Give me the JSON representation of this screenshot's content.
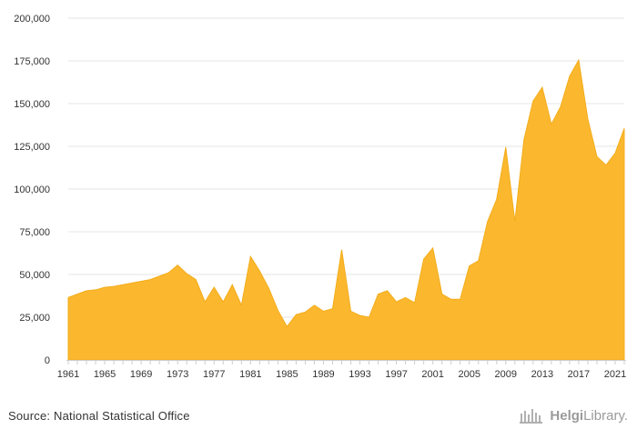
{
  "chart_data": {
    "type": "area",
    "title": "",
    "xlabel": "",
    "ylabel": "",
    "ylim": [
      0,
      200000
    ],
    "yticks": [
      0,
      25000,
      50000,
      75000,
      100000,
      125000,
      150000,
      175000,
      200000
    ],
    "ytick_labels": [
      "0",
      "25,000",
      "50,000",
      "75,000",
      "100,000",
      "125,000",
      "150,000",
      "175,000",
      "200,000"
    ],
    "xlim": [
      1961,
      2022
    ],
    "xticks": [
      1961,
      1965,
      1969,
      1973,
      1977,
      1981,
      1985,
      1989,
      1993,
      1997,
      2001,
      2005,
      2009,
      2013,
      2017,
      2021
    ],
    "xtick_labels": [
      "1961",
      "1965",
      "1969",
      "1973",
      "1977",
      "1981",
      "1985",
      "1989",
      "1993",
      "1997",
      "2001",
      "2005",
      "2009",
      "2013",
      "2017",
      "2021"
    ],
    "grid": true,
    "x": [
      1961,
      1962,
      1963,
      1964,
      1965,
      1966,
      1967,
      1968,
      1969,
      1970,
      1971,
      1972,
      1973,
      1974,
      1975,
      1976,
      1977,
      1978,
      1979,
      1980,
      1981,
      1982,
      1983,
      1984,
      1985,
      1986,
      1987,
      1988,
      1989,
      1990,
      1991,
      1992,
      1993,
      1994,
      1995,
      1996,
      1997,
      1998,
      1999,
      2000,
      2001,
      2002,
      2003,
      2004,
      2005,
      2006,
      2007,
      2008,
      2009,
      2010,
      2011,
      2012,
      2013,
      2014,
      2015,
      2016,
      2017,
      2018,
      2019,
      2020,
      2021,
      2022
    ],
    "series": [
      {
        "values": [
          36500,
          38500,
          40500,
          41000,
          42500,
          43000,
          44000,
          45000,
          46000,
          47000,
          49000,
          51000,
          55500,
          50500,
          47000,
          34000,
          42500,
          34000,
          44000,
          32000,
          60500,
          52000,
          42000,
          29000,
          19500,
          26500,
          28000,
          32000,
          28500,
          30000,
          64500,
          28500,
          26000,
          25000,
          38500,
          40500,
          34000,
          36500,
          33500,
          59000,
          65500,
          38500,
          35500,
          35500,
          55000,
          58000,
          81000,
          94000,
          124500,
          81000,
          129000,
          151500,
          159500,
          138000,
          148000,
          166000,
          175500,
          141000,
          119000,
          114000,
          121000,
          135500
        ]
      }
    ]
  },
  "colors": {
    "area_fill": "#FBB82F",
    "area_line": "#F3AC19",
    "grid": "#e6e6e6",
    "axis": "#cccccc"
  },
  "footer": {
    "source": "Source: National Statistical Office",
    "logo_icon": "helgi-library-icon",
    "logo_part1": "Helgi",
    "logo_part2": "Library."
  }
}
